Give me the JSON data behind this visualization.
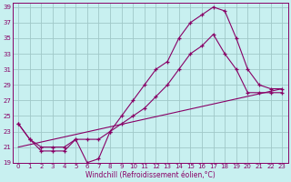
{
  "xlabel": "Windchill (Refroidissement éolien,°C)",
  "background_color": "#c8f0f0",
  "grid_color": "#a0c8c8",
  "line_color": "#880066",
  "xlim": [
    -0.5,
    23.5
  ],
  "ylim": [
    19,
    39.5
  ],
  "xticks": [
    0,
    1,
    2,
    3,
    4,
    5,
    6,
    7,
    8,
    9,
    10,
    11,
    12,
    13,
    14,
    15,
    16,
    17,
    18,
    19,
    20,
    21,
    22,
    23
  ],
  "yticks": [
    19,
    21,
    23,
    25,
    27,
    29,
    31,
    33,
    35,
    37,
    39
  ],
  "line1_x": [
    0,
    1,
    2,
    3,
    4,
    5,
    6,
    7,
    8,
    9,
    10,
    11,
    12,
    13,
    14,
    15,
    16,
    17,
    18,
    19,
    20,
    21,
    22,
    23
  ],
  "line1_y": [
    24,
    22,
    20.5,
    20.5,
    20.5,
    22,
    19,
    19.5,
    23,
    25,
    27,
    29,
    31,
    32,
    35,
    37,
    38,
    39,
    38.5,
    35,
    31,
    29,
    28.5,
    28.5
  ],
  "line2_x": [
    0,
    1,
    2,
    3,
    4,
    5,
    6,
    7,
    8,
    9,
    10,
    11,
    12,
    13,
    14,
    15,
    16,
    17,
    18,
    19,
    20,
    21,
    22,
    23
  ],
  "line2_y": [
    24,
    22,
    21,
    21,
    21,
    22,
    22,
    22,
    23,
    24,
    25,
    26,
    27.5,
    29,
    31,
    33,
    34,
    35.5,
    33,
    31,
    28,
    28,
    28,
    28
  ],
  "line3_x": [
    0,
    23
  ],
  "line3_y": [
    21,
    28.5
  ]
}
